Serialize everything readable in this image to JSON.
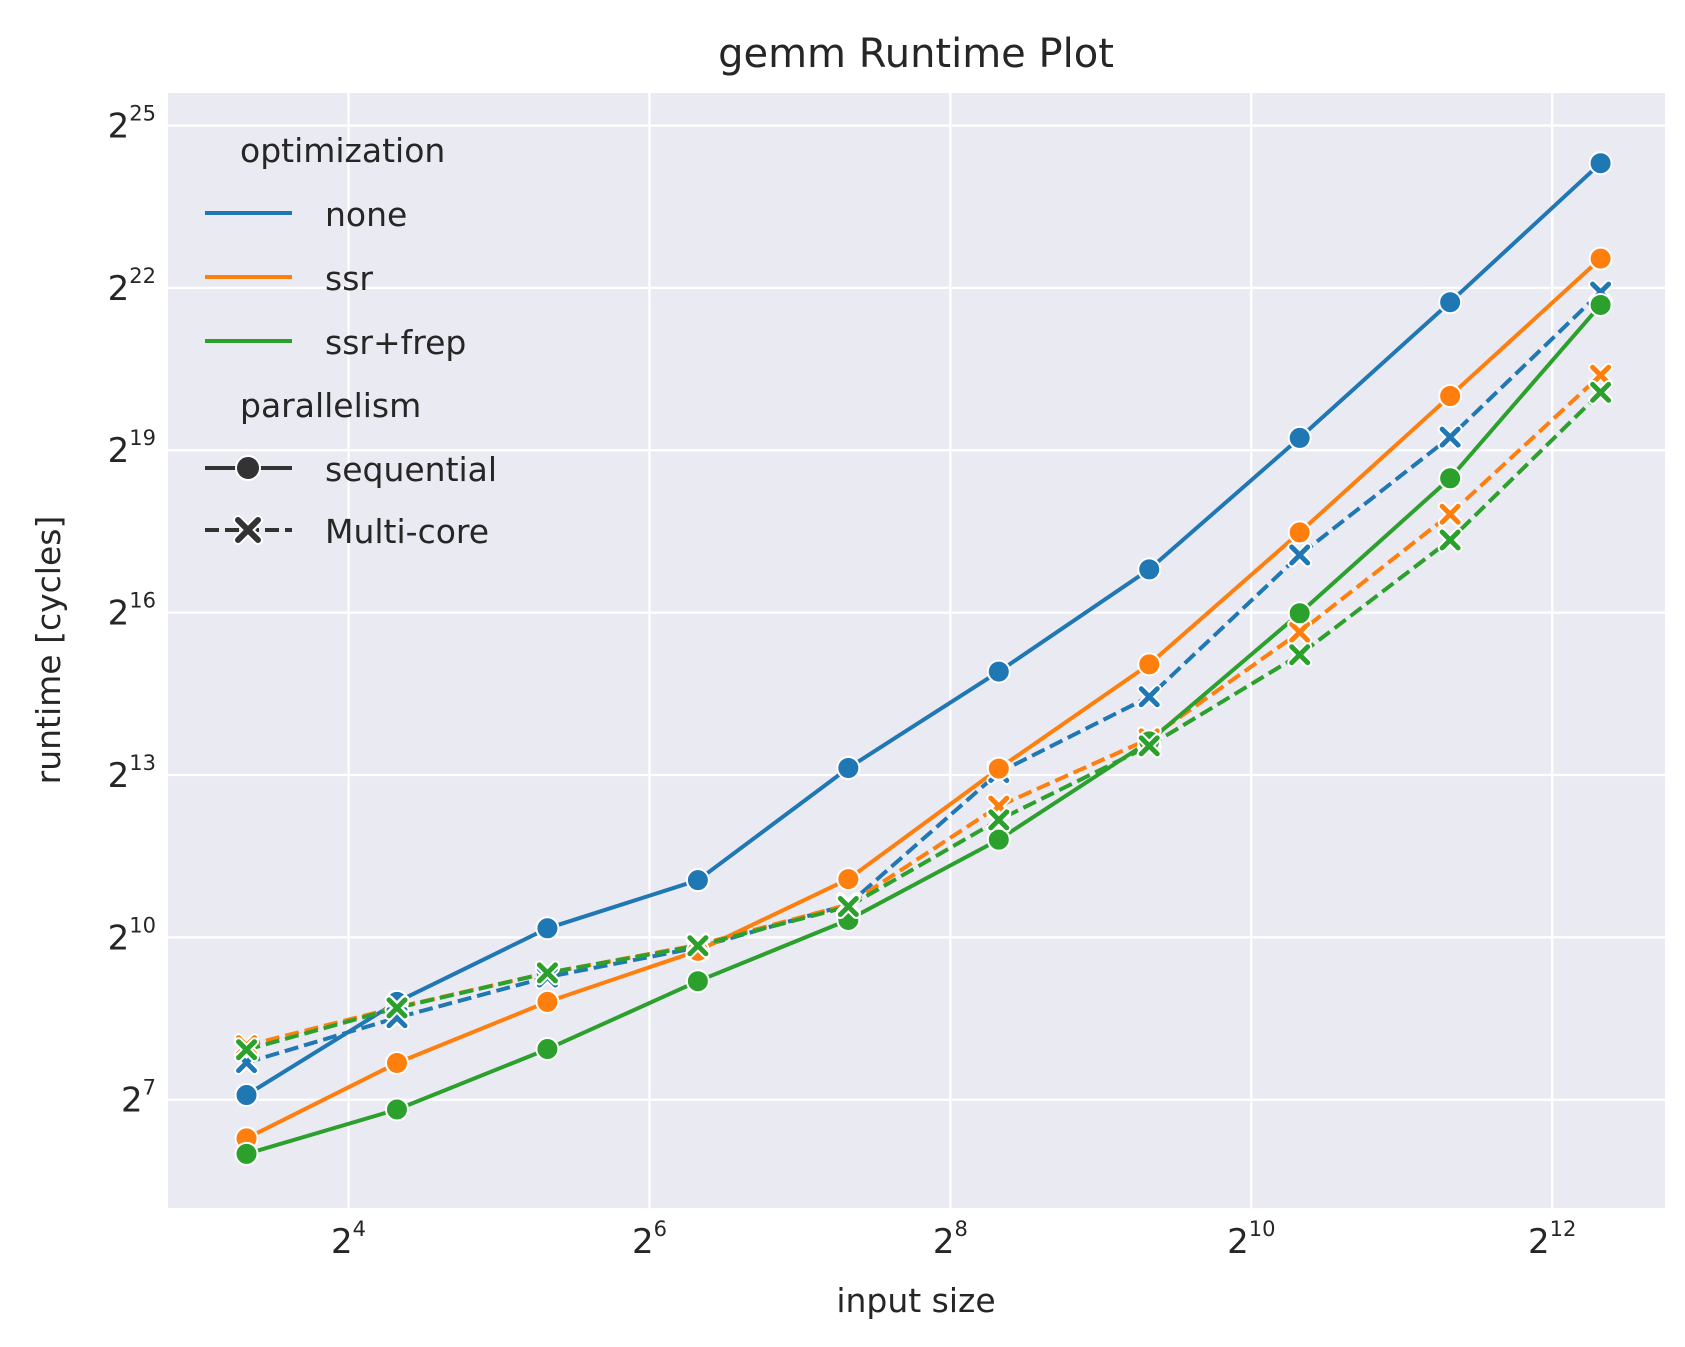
{
  "chart_data": {
    "type": "line",
    "title": "gemm Runtime Plot",
    "xlabel": "input size",
    "ylabel": "runtime [cycles]",
    "x_scale": "log2",
    "y_scale": "log2",
    "x_ticks": [
      {
        "base": "2",
        "exp": "4"
      },
      {
        "base": "2",
        "exp": "6"
      },
      {
        "base": "2",
        "exp": "8"
      },
      {
        "base": "2",
        "exp": "10"
      },
      {
        "base": "2",
        "exp": "12"
      }
    ],
    "y_ticks": [
      {
        "base": "2",
        "exp": "7"
      },
      {
        "base": "2",
        "exp": "10"
      },
      {
        "base": "2",
        "exp": "13"
      },
      {
        "base": "2",
        "exp": "16"
      },
      {
        "base": "2",
        "exp": "19"
      },
      {
        "base": "2",
        "exp": "22"
      },
      {
        "base": "2",
        "exp": "25"
      }
    ],
    "xlim_log2": [
      2.8,
      12.75
    ],
    "ylim_log2": [
      5.0,
      25.6
    ],
    "grid": true,
    "legend_placement": "top-left",
    "legend": {
      "hue_title": "optimization",
      "hue_entries": [
        {
          "label": "none",
          "color": "#1f77b4"
        },
        {
          "label": "ssr",
          "color": "#ff7f0e"
        },
        {
          "label": "ssr+frep",
          "color": "#2ca02c"
        }
      ],
      "style_title": "parallelism",
      "style_entries": [
        {
          "label": "sequential",
          "marker": "circle",
          "dash": "solid"
        },
        {
          "label": "Multi-core",
          "marker": "x",
          "dash": "dashed"
        }
      ]
    },
    "x": [
      10,
      20,
      40,
      80,
      160,
      320,
      640,
      1280,
      2560,
      5120
    ],
    "series": [
      {
        "optimization": "none",
        "parallelism": "sequential",
        "color": "#1f77b4",
        "values": [
          136,
          448,
          1150,
          2130,
          8960,
          30800,
          114000,
          614000,
          3490000,
          20700000
        ]
      },
      {
        "optimization": "none",
        "parallelism": "Multi-core",
        "color": "#1f77b4",
        "values": [
          206,
          366,
          616,
          900,
          1560,
          8460,
          22300,
          137000,
          620000,
          3970000
        ]
      },
      {
        "optimization": "ssr",
        "parallelism": "sequential",
        "color": "#ff7f0e",
        "values": [
          78,
          205,
          448,
          862,
          2160,
          8890,
          33800,
          183000,
          1050000,
          6100000
        ]
      },
      {
        "optimization": "ssr",
        "parallelism": "Multi-core",
        "color": "#ff7f0e",
        "values": [
          256,
          418,
          650,
          930,
          1560,
          5500,
          13000,
          51000,
          231000,
          1370000
        ]
      },
      {
        "optimization": "ssr+frep",
        "parallelism": "sequential",
        "color": "#2ca02c",
        "values": [
          64,
          113,
          245,
          584,
          1280,
          3580,
          12600,
          65000,
          366000,
          3370000
        ]
      },
      {
        "optimization": "ssr+frep",
        "parallelism": "Multi-core",
        "color": "#2ca02c",
        "values": [
          243,
          415,
          650,
          920,
          1520,
          4610,
          11900,
          38200,
          166000,
          1100000
        ]
      }
    ]
  }
}
